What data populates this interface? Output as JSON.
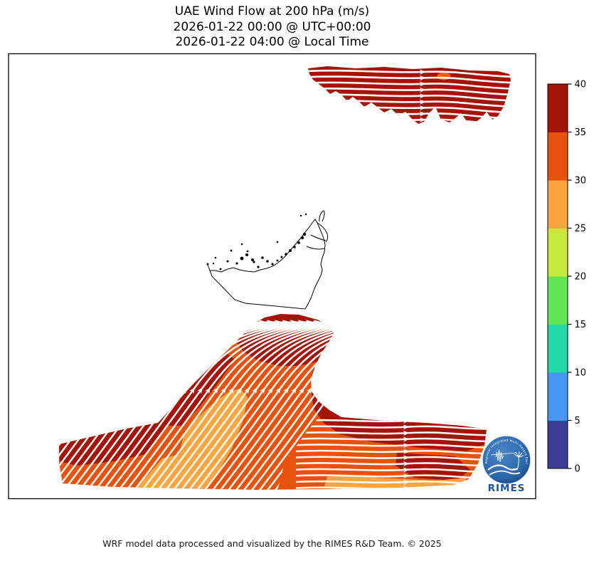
{
  "title": {
    "line1": "UAE Wind Flow at 200 hPa (m/s)",
    "line2": "2026-01-22 00:00 @ UTC+00:00",
    "line3": "2026-01-22 04:00 @ Local Time"
  },
  "footer": {
    "credit": "WRF model data processed and visualized by the RIMES R&D Team. © 2025"
  },
  "logo": {
    "label": "RIMES",
    "arc_text": "Regional Integrated Multi-Hazard Early Warning System"
  },
  "chart_data": {
    "type": "flow-map",
    "title": "UAE Wind Flow at 200 hPa (m/s)",
    "valid_time_utc": "2026-01-22 00:00 @ UTC+00:00",
    "valid_time_local": "2026-01-22 04:00 @ Local Time",
    "variable": "wind speed",
    "level": "200 hPa",
    "units": "m/s",
    "colorbar": {
      "min": 0,
      "max": 40,
      "tick_step": 5,
      "ticks": [
        0,
        5,
        10,
        15,
        20,
        25,
        30,
        35,
        40
      ],
      "segment_colors_low_to_high": [
        "#3e3d9a",
        "#4497f5",
        "#25d8a8",
        "#63e655",
        "#c6e93d",
        "#fca43d",
        "#e8520d",
        "#a61409"
      ]
    },
    "features": [
      {
        "name": "northern coastal wind band (Iran coast)",
        "speed_ms": "35-40",
        "flow_direction": "eastward"
      },
      {
        "name": "small embedded patch in northern band",
        "speed_ms": "30-35"
      },
      {
        "name": "southern wind band (Saudi Arabia / Oman)",
        "speed_ms": "25-40",
        "flow_direction": "northeastward curving eastward"
      },
      {
        "name": "UAE border outline",
        "style": "thin black outline, no fill, with coastal islands as dots"
      }
    ],
    "legend_position": "right vertical colorbar",
    "grid": false
  },
  "colors": {
    "dark_red": "#a61409",
    "orange_red": "#e8520d",
    "light_orange": "#fca43d",
    "streamline": "#ffffff",
    "frame": "#000000",
    "logo_blue": "#2a66ad",
    "logo_text_blue": "#1d55a3"
  }
}
